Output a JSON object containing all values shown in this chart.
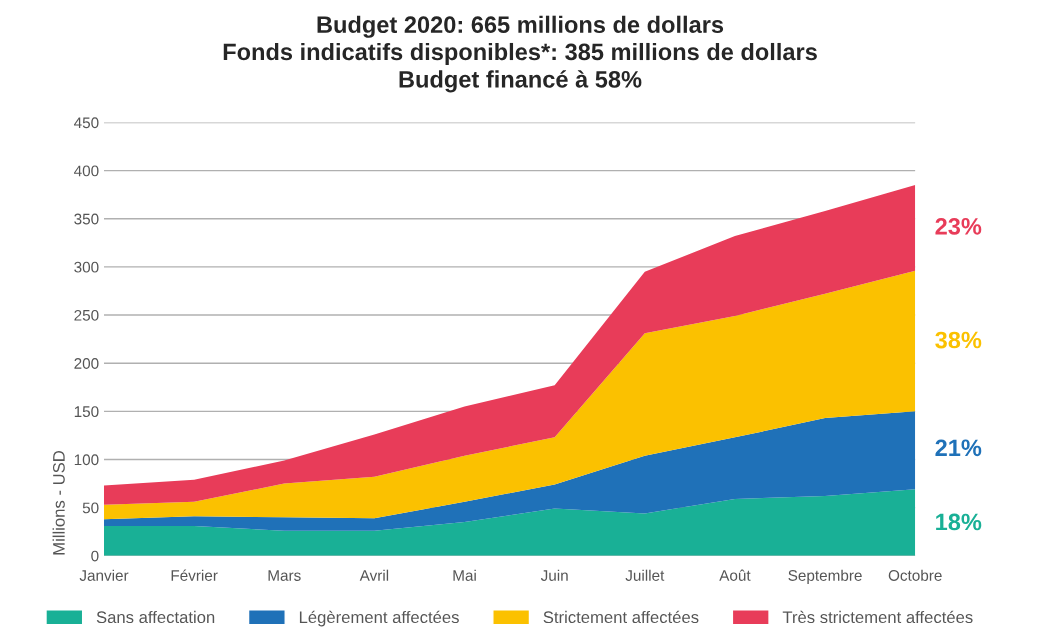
{
  "chart_data": {
    "type": "area",
    "stacked": true,
    "title": "Budget 2020: 665 millions de dollars\nFonds indicatifs disponibles*: 385 millions de dollars\nBudget financé à 58%",
    "ylabel": "Millions - USD",
    "categories": [
      "Janvier",
      "Février",
      "Mars",
      "Avril",
      "Mai",
      "Juin",
      "Juillet",
      "Août",
      "Septembre",
      "Octobre"
    ],
    "series": [
      {
        "name": "Sans affectation",
        "color": "#19b096",
        "values": [
          31,
          31,
          26,
          26,
          35,
          49,
          44,
          59,
          62,
          69
        ]
      },
      {
        "name": "Légèrement affectées",
        "color": "#1f71b8",
        "values": [
          7,
          10,
          14,
          13,
          21,
          25,
          60,
          64,
          81,
          81
        ]
      },
      {
        "name": "Strictement affectées",
        "color": "#fbc100",
        "values": [
          15,
          15,
          35,
          43,
          48,
          49,
          127,
          126,
          129,
          146
        ]
      },
      {
        "name": "Très strictement affectées",
        "color": "#e83c59",
        "values": [
          20,
          23,
          24,
          44,
          51,
          54,
          64,
          83,
          86,
          89
        ]
      }
    ],
    "annotations": [
      {
        "text": "23%",
        "x": "Octobre",
        "y": 340
      },
      {
        "text": "38%",
        "x": "Octobre",
        "y": 222
      },
      {
        "text": "21%",
        "x": "Octobre",
        "y": 110
      },
      {
        "text": "18%",
        "x": "Octobre",
        "y": 33
      }
    ],
    "ylim": [
      0,
      450
    ],
    "yticks": [
      0,
      50,
      100,
      150,
      200,
      250,
      300,
      350,
      400,
      450
    ],
    "grid": "y",
    "legend": "bottom"
  }
}
